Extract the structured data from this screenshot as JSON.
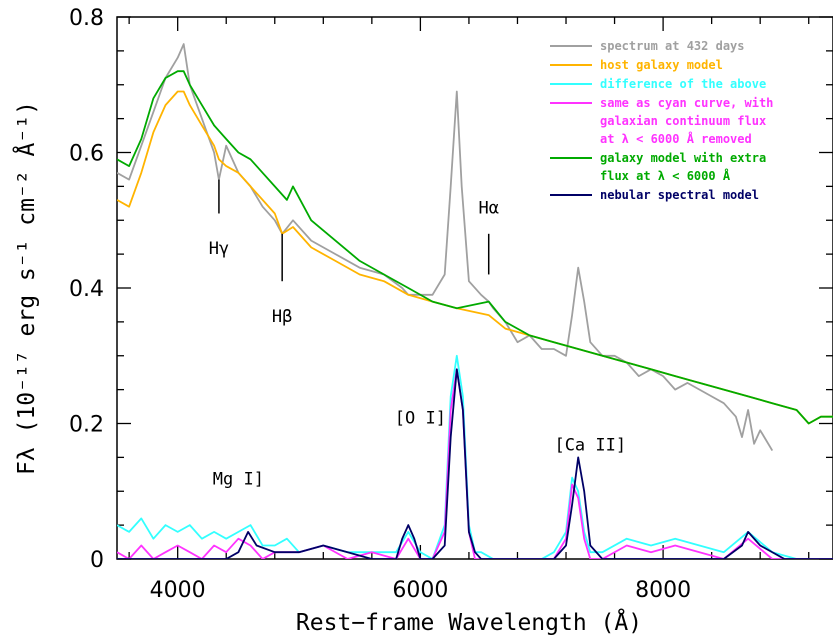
{
  "chart_data": {
    "type": "line",
    "title": "",
    "xlabel": "Rest−frame Wavelength (Å)",
    "ylabel": "Fλ (10⁻¹⁷ erg s⁻¹ cm⁻² Å⁻¹)",
    "xlim": [
      3500,
      9400
    ],
    "ylim": [
      0,
      0.8
    ],
    "x_ticks": [
      4000,
      6000,
      8000
    ],
    "x_tick_labels": [
      "4000",
      "6000",
      "8000"
    ],
    "y_ticks": [
      0,
      0.2,
      0.4,
      0.6,
      0.8
    ],
    "y_tick_labels": [
      "0",
      "0.2",
      "0.4",
      "0.6",
      "0.8"
    ],
    "legend_position": "top-right",
    "series": [
      {
        "name": "spectrum at 432 days",
        "color": "#a0a0a0",
        "x": [
          3500,
          3600,
          3700,
          3800,
          3900,
          4000,
          4050,
          4100,
          4200,
          4300,
          4340,
          4400,
          4500,
          4600,
          4700,
          4800,
          4861,
          4950,
          5100,
          5300,
          5500,
          5700,
          5850,
          5900,
          6000,
          6100,
          6200,
          6250,
          6300,
          6340,
          6400,
          6500,
          6563,
          6600,
          6700,
          6800,
          6900,
          7000,
          7100,
          7200,
          7250,
          7300,
          7350,
          7400,
          7500,
          7600,
          7700,
          7800,
          7900,
          8000,
          8100,
          8200,
          8300,
          8400,
          8500,
          8600,
          8650,
          8700,
          8750,
          8800,
          8900
        ],
        "y": [
          0.57,
          0.56,
          0.61,
          0.66,
          0.71,
          0.74,
          0.76,
          0.7,
          0.65,
          0.6,
          0.56,
          0.61,
          0.57,
          0.55,
          0.52,
          0.5,
          0.48,
          0.5,
          0.47,
          0.45,
          0.43,
          0.42,
          0.4,
          0.39,
          0.39,
          0.39,
          0.42,
          0.55,
          0.69,
          0.55,
          0.41,
          0.39,
          0.38,
          0.37,
          0.35,
          0.32,
          0.33,
          0.31,
          0.31,
          0.3,
          0.36,
          0.43,
          0.38,
          0.32,
          0.3,
          0.3,
          0.29,
          0.27,
          0.28,
          0.27,
          0.25,
          0.26,
          0.25,
          0.24,
          0.23,
          0.21,
          0.18,
          0.22,
          0.17,
          0.19,
          0.16
        ]
      },
      {
        "name": "host galaxy model",
        "color": "#ffb400",
        "x": [
          3500,
          3600,
          3700,
          3800,
          3900,
          4000,
          4050,
          4100,
          4200,
          4300,
          4340,
          4400,
          4500,
          4600,
          4700,
          4800,
          4861,
          4950,
          5100,
          5300,
          5500,
          5700,
          5900,
          6100,
          6300,
          6563,
          6700,
          6900,
          7100,
          7300,
          7500,
          7700,
          7900,
          8100,
          8300,
          8500,
          8700,
          8900,
          9100,
          9200,
          9300,
          9400
        ],
        "y": [
          0.53,
          0.52,
          0.57,
          0.63,
          0.67,
          0.69,
          0.69,
          0.67,
          0.64,
          0.61,
          0.59,
          0.58,
          0.57,
          0.55,
          0.53,
          0.51,
          0.48,
          0.49,
          0.46,
          0.44,
          0.42,
          0.41,
          0.39,
          0.38,
          0.37,
          0.36,
          0.34,
          0.33,
          0.32,
          0.31,
          0.3,
          0.29,
          0.28,
          0.27,
          0.26,
          0.25,
          0.24,
          0.23,
          0.22,
          0.2,
          0.21,
          0.21
        ]
      },
      {
        "name": "difference of the above",
        "color": "#33ffff",
        "x": [
          3500,
          3600,
          3700,
          3800,
          3900,
          4000,
          4100,
          4200,
          4300,
          4400,
          4500,
          4600,
          4700,
          4800,
          4900,
          5000,
          5200,
          5400,
          5600,
          5800,
          5900,
          6000,
          6100,
          6200,
          6250,
          6300,
          6350,
          6400,
          6450,
          6500,
          6600,
          6800,
          7000,
          7100,
          7200,
          7250,
          7300,
          7350,
          7400,
          7500,
          7700,
          7900,
          8100,
          8300,
          8500,
          8700,
          8900,
          9100,
          9300,
          9400
        ],
        "y": [
          0.05,
          0.04,
          0.06,
          0.03,
          0.05,
          0.04,
          0.05,
          0.03,
          0.04,
          0.03,
          0.04,
          0.05,
          0.02,
          0.02,
          0.03,
          0.01,
          0.02,
          0.01,
          0.01,
          0.01,
          0.04,
          0.01,
          0.0,
          0.05,
          0.24,
          0.3,
          0.24,
          0.05,
          0.01,
          0.01,
          0.0,
          0.0,
          0.0,
          0.01,
          0.04,
          0.12,
          0.1,
          0.04,
          0.01,
          0.01,
          0.03,
          0.02,
          0.03,
          0.02,
          0.01,
          0.04,
          0.01,
          0.0,
          0.0,
          0.0
        ]
      },
      {
        "name": "same as cyan curve, with galaxian continuum flux at λ < 6000 Å removed",
        "color": "#ff33ff",
        "x": [
          3500,
          3600,
          3700,
          3800,
          3900,
          4000,
          4100,
          4200,
          4300,
          4400,
          4500,
          4600,
          4700,
          4800,
          5000,
          5200,
          5400,
          5600,
          5800,
          5900,
          6000,
          6100,
          6200,
          6250,
          6300,
          6350,
          6400,
          6450,
          6500,
          6600,
          6800,
          7000,
          7100,
          7200,
          7250,
          7300,
          7350,
          7400,
          7500,
          7700,
          7900,
          8100,
          8300,
          8500,
          8700,
          8900,
          9100,
          9400
        ],
        "y": [
          0.01,
          0.0,
          0.02,
          0.0,
          0.01,
          0.02,
          0.01,
          0.0,
          0.02,
          0.01,
          0.03,
          0.02,
          0.0,
          0.01,
          0.01,
          0.02,
          0.0,
          0.01,
          0.0,
          0.03,
          0.0,
          0.0,
          0.04,
          0.22,
          0.28,
          0.22,
          0.04,
          0.0,
          0.0,
          0.0,
          0.0,
          0.0,
          0.0,
          0.03,
          0.11,
          0.09,
          0.03,
          0.0,
          0.0,
          0.02,
          0.01,
          0.02,
          0.01,
          0.0,
          0.03,
          0.0,
          0.0,
          0.0
        ]
      },
      {
        "name": "galaxy model with extra flux at λ < 6000 Å",
        "color": "#00aa00",
        "x": [
          3500,
          3600,
          3700,
          3800,
          3900,
          4000,
          4050,
          4100,
          4200,
          4300,
          4400,
          4500,
          4600,
          4700,
          4800,
          4900,
          4950,
          5100,
          5300,
          5500,
          5700,
          5900,
          6100,
          6300,
          6563,
          6700,
          6900,
          7100,
          7300,
          7500,
          7700,
          7900,
          8100,
          8300,
          8500,
          8700,
          8900,
          9100,
          9200,
          9300,
          9400
        ],
        "y": [
          0.59,
          0.58,
          0.62,
          0.68,
          0.71,
          0.72,
          0.72,
          0.7,
          0.67,
          0.64,
          0.62,
          0.6,
          0.59,
          0.57,
          0.55,
          0.53,
          0.55,
          0.5,
          0.47,
          0.44,
          0.42,
          0.4,
          0.38,
          0.37,
          0.38,
          0.35,
          0.33,
          0.32,
          0.31,
          0.3,
          0.29,
          0.28,
          0.27,
          0.26,
          0.25,
          0.24,
          0.23,
          0.22,
          0.2,
          0.21,
          0.21
        ]
      },
      {
        "name": "nebular spectral model",
        "color": "#000066",
        "x": [
          3500,
          3800,
          4000,
          4200,
          4400,
          4500,
          4580,
          4650,
          4800,
          5000,
          5200,
          5400,
          5600,
          5800,
          5850,
          5900,
          5950,
          6000,
          6100,
          6200,
          6250,
          6300,
          6350,
          6400,
          6450,
          6500,
          6600,
          6800,
          7000,
          7100,
          7200,
          7250,
          7300,
          7350,
          7400,
          7500,
          7700,
          7900,
          8100,
          8300,
          8500,
          8650,
          8700,
          8800,
          9000,
          9200,
          9400
        ],
        "y": [
          0.0,
          0.0,
          0.0,
          0.0,
          0.0,
          0.01,
          0.04,
          0.02,
          0.01,
          0.01,
          0.02,
          0.01,
          0.0,
          0.0,
          0.03,
          0.05,
          0.03,
          0.0,
          0.0,
          0.02,
          0.18,
          0.28,
          0.22,
          0.04,
          0.01,
          0.0,
          0.0,
          0.0,
          0.0,
          0.0,
          0.02,
          0.08,
          0.15,
          0.1,
          0.02,
          0.0,
          0.0,
          0.0,
          0.0,
          0.0,
          0.0,
          0.02,
          0.04,
          0.02,
          0.0,
          0.0,
          0.0
        ]
      }
    ],
    "annotations": [
      {
        "text": "Hγ",
        "x": 4340,
        "y_text": 0.45,
        "line_from": 0.51,
        "line_to": 0.56
      },
      {
        "text": "Hβ",
        "x": 4861,
        "y_text": 0.35,
        "line_from": 0.41,
        "line_to": 0.48
      },
      {
        "text": "Hα",
        "x": 6563,
        "y_text": 0.51,
        "line_from": 0.42,
        "line_to": 0.48
      },
      {
        "text": "[O I]",
        "x": 6000,
        "y_text": 0.2
      },
      {
        "text": "[Ca II]",
        "x": 7400,
        "y_text": 0.16
      },
      {
        "text": "Mg I]",
        "x": 4500,
        "y_text": 0.11
      }
    ]
  }
}
